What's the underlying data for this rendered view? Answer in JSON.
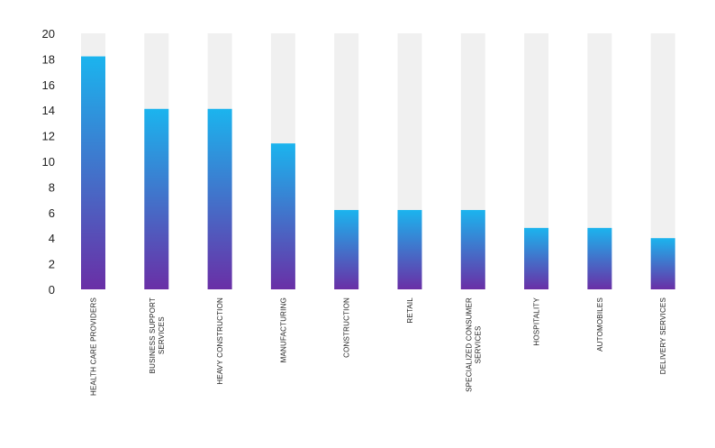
{
  "chart_data": {
    "type": "bar",
    "title": "",
    "xlabel": "",
    "ylabel": "",
    "ylim": [
      0,
      20
    ],
    "yticks": [
      "0",
      "2",
      "4",
      "6",
      "8",
      "10",
      "12",
      "14",
      "16",
      "18",
      "20"
    ],
    "categories": [
      [
        "HEALTH CARE PROVIDERS"
      ],
      [
        "BUSINESS SUPPORT",
        "SERVICES"
      ],
      [
        "HEAVY CONSTRUCTION"
      ],
      [
        "MANUFACTURING"
      ],
      [
        "CONSTRUCTION"
      ],
      [
        "RETAIL"
      ],
      [
        "SPECIALIZED CONSUMER",
        "SERVICES"
      ],
      [
        "HOSPITALITY"
      ],
      [
        "AUTOMOBILES"
      ],
      [
        "DELIVERY SERVICES"
      ]
    ],
    "values": [
      18.2,
      14.1,
      14.1,
      11.4,
      6.2,
      6.2,
      6.2,
      4.8,
      4.8,
      4.0
    ],
    "background_max": 20,
    "grid": false,
    "legend": "none",
    "colors": {
      "bar_top": "#1bb4ee",
      "bar_bottom": "#6a2fa6",
      "track": "#f0f0f0",
      "text": "#222222"
    }
  }
}
